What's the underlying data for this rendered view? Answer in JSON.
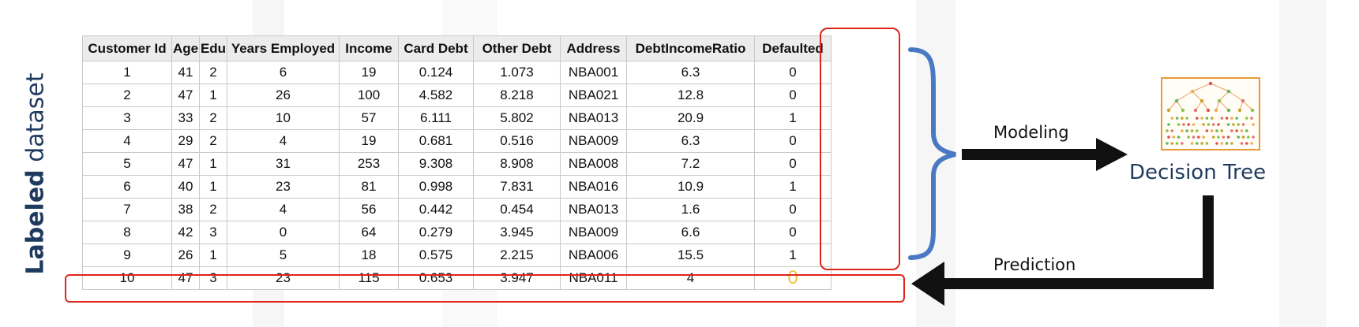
{
  "side_label": {
    "bold": "Labeled",
    "rest": " dataset"
  },
  "table": {
    "columns": [
      "Customer Id",
      "Age",
      "Edu",
      "Years Employed",
      "Income",
      "Card Debt",
      "Other Debt",
      "Address",
      "DebtIncomeRatio",
      "Defaulted"
    ],
    "rows": [
      [
        "1",
        "41",
        "2",
        "6",
        "19",
        "0.124",
        "1.073",
        "NBA001",
        "6.3",
        "0"
      ],
      [
        "2",
        "47",
        "1",
        "26",
        "100",
        "4.582",
        "8.218",
        "NBA021",
        "12.8",
        "0"
      ],
      [
        "3",
        "33",
        "2",
        "10",
        "57",
        "6.111",
        "5.802",
        "NBA013",
        "20.9",
        "1"
      ],
      [
        "4",
        "29",
        "2",
        "4",
        "19",
        "0.681",
        "0.516",
        "NBA009",
        "6.3",
        "0"
      ],
      [
        "5",
        "47",
        "1",
        "31",
        "253",
        "9.308",
        "8.908",
        "NBA008",
        "7.2",
        "0"
      ],
      [
        "6",
        "40",
        "1",
        "23",
        "81",
        "0.998",
        "7.831",
        "NBA016",
        "10.9",
        "1"
      ],
      [
        "7",
        "38",
        "2",
        "4",
        "56",
        "0.442",
        "0.454",
        "NBA013",
        "1.6",
        "0"
      ],
      [
        "8",
        "42",
        "3",
        "0",
        "64",
        "0.279",
        "3.945",
        "NBA009",
        "6.6",
        "0"
      ],
      [
        "9",
        "26",
        "1",
        "5",
        "18",
        "0.575",
        "2.215",
        "NBA006",
        "15.5",
        "1"
      ],
      [
        "10",
        "47",
        "3",
        "23",
        "115",
        "0.653",
        "3.947",
        "NBA011",
        "4",
        "0"
      ]
    ]
  },
  "modeling_label": "Modeling",
  "prediction_label": "Prediction",
  "model_label": "Decision Tree",
  "icons": {
    "model": "decision-tree-icon"
  },
  "colors": {
    "highlight": "#e0241b",
    "brace": "#4a78c2",
    "arrow": "#111111",
    "predicted_value": "#f2c23a",
    "label_text": "#1f3a5f"
  }
}
